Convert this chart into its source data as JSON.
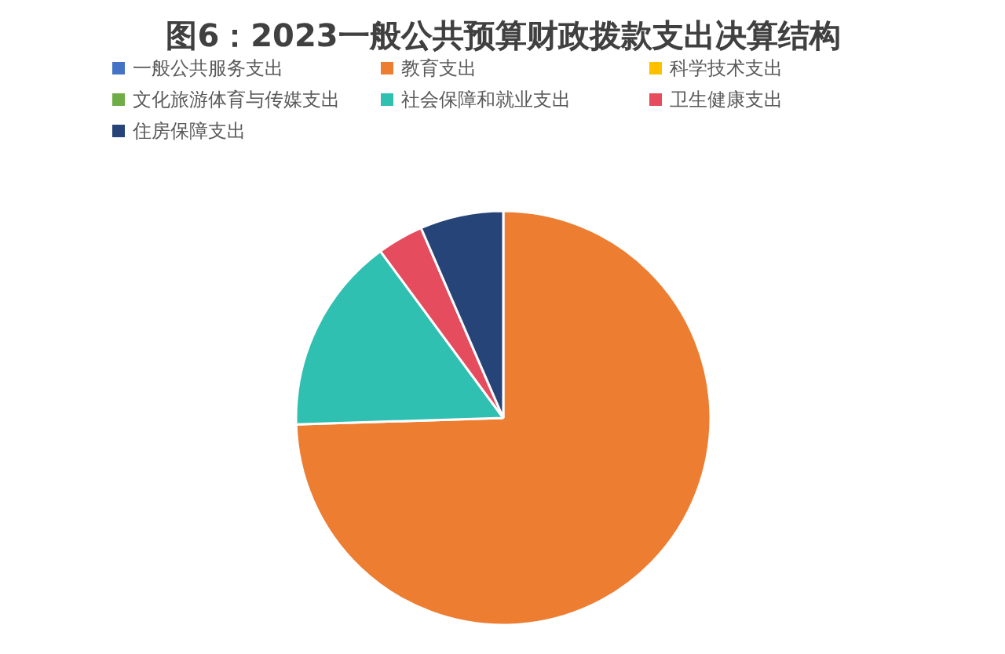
{
  "chart_data": {
    "type": "pie",
    "title": "图6：2023一般公共预算财政拨款支出决算结构",
    "categories": [
      "一般公共服务支出",
      "教育支出",
      "科学技术支出",
      "文化旅游体育与传媒支出",
      "社会保障和就业支出",
      "卫生健康支出",
      "住房保障支出"
    ],
    "values": [
      0,
      74.5,
      0,
      0,
      15.4,
      3.6,
      6.5
    ],
    "colors": [
      "#4472c4",
      "#ed7d31",
      "#ffc000",
      "#70ad47",
      "#2fc0b2",
      "#e54c5e",
      "#264478"
    ],
    "legend": "top"
  }
}
